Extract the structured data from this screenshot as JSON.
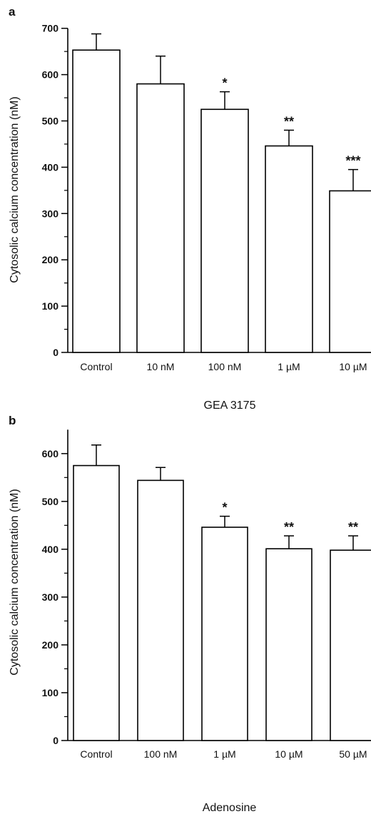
{
  "chart_data": [
    {
      "panel": "a",
      "type": "bar",
      "xlabel": "GEA 3175",
      "ylabel": "Cytosolic calcium concentration (nM)",
      "categories": [
        "Control",
        "10 nM",
        "100 nM",
        "1 µM",
        "10 µM"
      ],
      "values": [
        653,
        580,
        525,
        446,
        349
      ],
      "errors": [
        35,
        60,
        38,
        34,
        46
      ],
      "significance": [
        "",
        "",
        "*",
        "**",
        "***"
      ],
      "ylim": [
        0,
        700
      ],
      "yticks": [
        0,
        100,
        200,
        300,
        400,
        500,
        600,
        700
      ],
      "yticks_minor": [
        50,
        150,
        250,
        350,
        450,
        550,
        650
      ],
      "grid": false,
      "bar_fill": "#ffffff",
      "bar_stroke": "#000000"
    },
    {
      "panel": "b",
      "type": "bar",
      "xlabel": "Adenosine",
      "ylabel": "Cytosolic calcium concentration (nM)",
      "categories": [
        "Control",
        "100 nM",
        "1 µM",
        "10 µM",
        "50 µM"
      ],
      "values": [
        575,
        544,
        446,
        401,
        398
      ],
      "errors": [
        43,
        27,
        23,
        27,
        30
      ],
      "significance": [
        "",
        "",
        "*",
        "**",
        "**"
      ],
      "ylim": [
        0,
        650
      ],
      "yticks": [
        0,
        100,
        200,
        300,
        400,
        500,
        600
      ],
      "yticks_minor": [
        50,
        150,
        250,
        350,
        450,
        550
      ],
      "grid": false,
      "bar_fill": "#ffffff",
      "bar_stroke": "#000000"
    }
  ]
}
